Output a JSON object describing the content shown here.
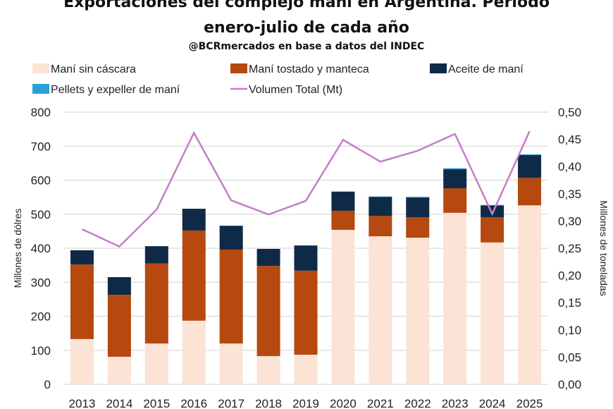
{
  "chart_data": {
    "type": "bar",
    "stacked": true,
    "title": "Exportaciones del complejo maní en Argentina. Período enero-julio de cada año",
    "title_lines": [
      "Exportaciones del complejo maní en Argentina. Período",
      "enero-julio de cada año"
    ],
    "subtitle": "@BCRmercados en base a datos del INDEC",
    "ylabel": "Millones de dólres",
    "y2label": "Millones de toneladas",
    "ylim": [
      0,
      800
    ],
    "y2lim": [
      0,
      0.5
    ],
    "yticks": [
      "0",
      "100",
      "200",
      "300",
      "400",
      "500",
      "600",
      "700",
      "800"
    ],
    "y2ticks": [
      "0,00",
      "0,05",
      "0,10",
      "0,15",
      "0,20",
      "0,25",
      "0,30",
      "0,35",
      "0,40",
      "0,45",
      "0,50"
    ],
    "grid": true,
    "legend_position": "top",
    "categories": [
      "2013",
      "2014",
      "2015",
      "2016",
      "2017",
      "2018",
      "2019",
      "2020",
      "2021",
      "2022",
      "2023",
      "2024",
      "2025"
    ],
    "series": [
      {
        "name": "Maní sin cáscara",
        "color": "#fbe3d6",
        "axis": "left",
        "values": [
          133,
          81,
          120,
          187,
          120,
          83,
          87,
          454,
          435,
          431,
          504,
          417,
          526
        ]
      },
      {
        "name": "Maní tostado y manteca",
        "color": "#b5490f",
        "axis": "left",
        "values": [
          219,
          182,
          235,
          265,
          276,
          265,
          247,
          56,
          60,
          60,
          72,
          74,
          81
        ]
      },
      {
        "name": "Aceite de maní",
        "color": "#0f2a47",
        "axis": "left",
        "values": [
          42,
          52,
          51,
          64,
          70,
          50,
          74,
          56,
          56,
          58,
          56,
          35,
          67
        ]
      },
      {
        "name": "Pellets y expeller de maní",
        "color": "#2aa0d8",
        "axis": "left",
        "values": [
          0,
          0,
          0,
          0,
          0,
          0,
          0,
          1,
          1,
          2,
          3,
          1,
          2
        ]
      },
      {
        "name": "Volumen Total (Mt)",
        "type": "line",
        "color": "#c47fc9",
        "axis": "right",
        "values": [
          0.285,
          0.253,
          0.321,
          0.462,
          0.338,
          0.312,
          0.337,
          0.449,
          0.409,
          0.429,
          0.46,
          0.313,
          0.465
        ]
      }
    ]
  }
}
